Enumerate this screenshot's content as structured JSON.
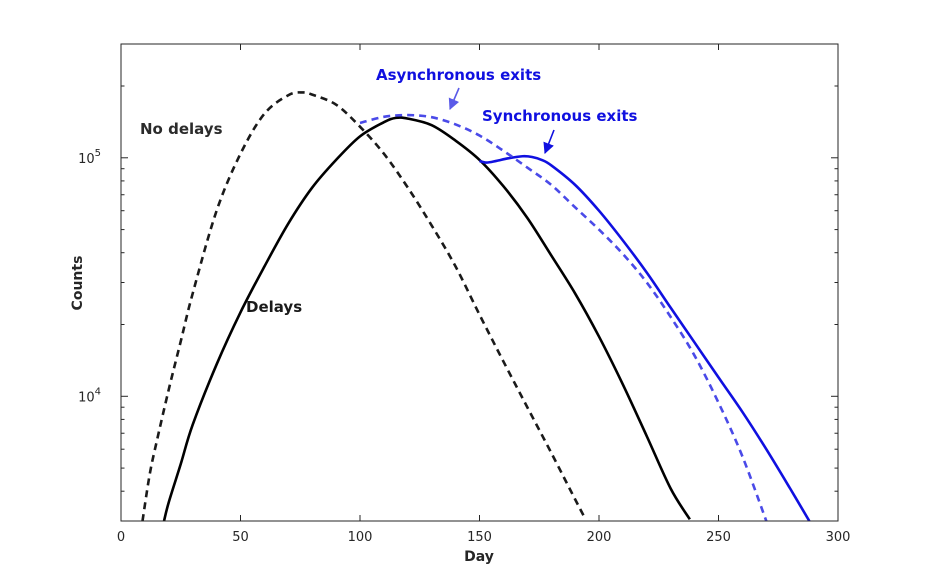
{
  "chart_data": {
    "type": "line",
    "xlabel": "Day",
    "ylabel": "Counts",
    "xlim": [
      0,
      300
    ],
    "ylim": [
      3000,
      300000
    ],
    "yscale": "log",
    "grid": false,
    "xticks": [
      0,
      50,
      100,
      150,
      200,
      250,
      300
    ],
    "xtick_labels": [
      "0",
      "50",
      "100",
      "150",
      "200",
      "250",
      "300"
    ],
    "yticks": [
      {
        "value": 10000,
        "base": "10",
        "exp": "4"
      },
      {
        "value": 100000,
        "base": "10",
        "exp": "5"
      }
    ],
    "series": [
      {
        "color": "#1a1a1a",
        "dash": "dashed",
        "x": [
          9,
          12,
          15,
          20,
          25,
          30,
          40,
          50,
          60,
          70,
          76,
          80,
          90,
          100,
          110,
          120,
          130,
          140,
          150,
          160,
          170,
          180,
          190,
          194
        ],
        "y": [
          3000,
          4700,
          6500,
          10700,
          17000,
          27000,
          60000,
          104000,
          153000,
          183000,
          188000,
          184000,
          167000,
          135000,
          104000,
          75000,
          52000,
          35000,
          22000,
          14000,
          9000,
          5800,
          3700,
          3100
        ]
      },
      {
        "color": "#000000",
        "dash": "solid",
        "x": [
          18,
          20,
          25,
          30,
          40,
          50,
          60,
          70,
          80,
          90,
          100,
          110,
          115,
          120,
          130,
          140,
          150,
          160,
          170,
          180,
          190,
          200,
          210,
          220,
          230,
          238
        ],
        "y": [
          3000,
          3600,
          5200,
          7600,
          13600,
          22500,
          35000,
          53000,
          75000,
          98000,
          123000,
          141000,
          147000,
          146000,
          137000,
          118000,
          98000,
          76000,
          56000,
          39000,
          27000,
          17800,
          11200,
          6800,
          4100,
          3050
        ]
      },
      {
        "color": "#1010e0",
        "dash": "solid",
        "x": [
          150,
          153,
          157,
          162,
          168,
          172,
          176,
          180,
          190,
          200,
          210,
          220,
          230,
          240,
          250,
          260,
          270,
          280,
          288
        ],
        "y": [
          97000,
          95500,
          97000,
          99500,
          101500,
          100800,
          98000,
          93000,
          77000,
          60000,
          45000,
          33000,
          23500,
          16800,
          12000,
          8600,
          6000,
          4100,
          3000
        ]
      },
      {
        "color": "#4a4ae8",
        "dash": "dashed",
        "x": [
          100,
          110,
          120,
          130,
          140,
          150,
          160,
          170,
          180,
          190,
          200,
          210,
          220,
          230,
          240,
          250,
          260,
          270
        ],
        "y": [
          140000,
          148500,
          151000,
          148000,
          138000,
          124000,
          107000,
          91000,
          77000,
          62000,
          50000,
          39500,
          30000,
          21500,
          14800,
          9400,
          5600,
          3000
        ]
      }
    ],
    "annotations": [
      {
        "text": "No delays",
        "color": "#2b2b2b"
      },
      {
        "text": "Delays",
        "color": "#1a1a1a"
      },
      {
        "text": "Asynchronous exits",
        "color": "#1010e0"
      },
      {
        "text": "Synchronous exits",
        "color": "#1010e0"
      }
    ]
  }
}
